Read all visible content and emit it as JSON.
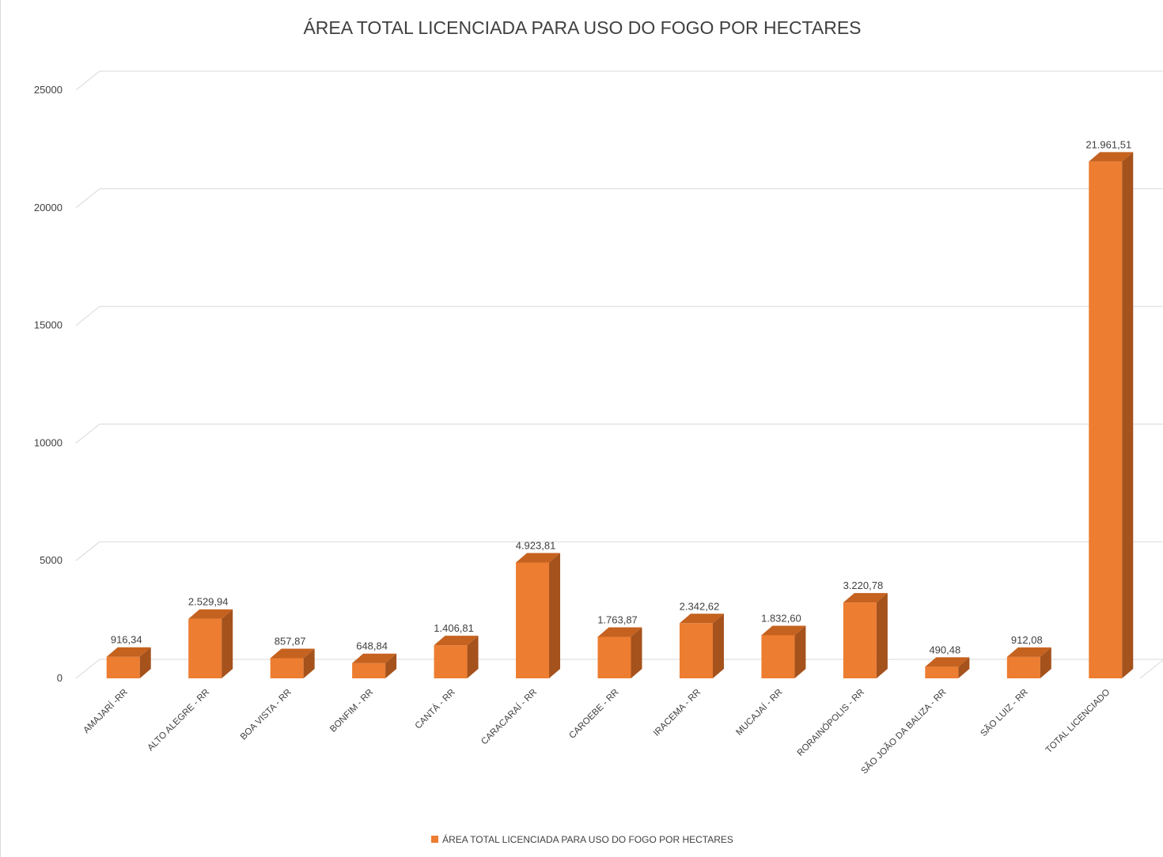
{
  "chart_data": {
    "type": "bar",
    "title": "ÁREA TOTAL LICENCIADA PARA USO DO FOGO POR HECTARES",
    "xlabel": "",
    "ylabel": "",
    "ylim": [
      0,
      25000
    ],
    "yticks": [
      "0",
      "5000",
      "10000",
      "15000",
      "20000",
      "25000"
    ],
    "ytick_values": [
      0,
      5000,
      10000,
      15000,
      20000,
      25000
    ],
    "grid": true,
    "legend_position": "bottom",
    "categories": [
      "AMAJARÍ -RR",
      "ALTO ALEGRE - RR",
      "BOA VISTA - RR",
      "BONFIM - RR",
      "CANTÁ - RR",
      "CARACARAÍ - RR",
      "CAROEBE - RR",
      "IRACEMA - RR",
      "MUCAJAÍ - RR",
      "RORAINÓPOLIS - RR",
      "SÃO JOÃO DA BALIZA - RR",
      "SÃO LUIZ - RR",
      "TOTAL LICENCIADO"
    ],
    "series": [
      {
        "name": "ÁREA TOTAL LICENCIADA PARA USO DO FOGO POR HECTARES",
        "values": [
          916.34,
          2529.94,
          857.87,
          648.84,
          1406.81,
          4923.81,
          1763.87,
          2342.62,
          1832.6,
          3220.78,
          490.48,
          912.08,
          21961.51
        ],
        "labels": [
          "916,34",
          "2.529,94",
          "857,87",
          "648,84",
          "1.406,81",
          "4.923,81",
          "1.763,87",
          "2.342,62",
          "1.832,60",
          "3.220,78",
          "490,48",
          "912,08",
          "21.961,51"
        ],
        "color": "#ED7D31"
      }
    ]
  }
}
